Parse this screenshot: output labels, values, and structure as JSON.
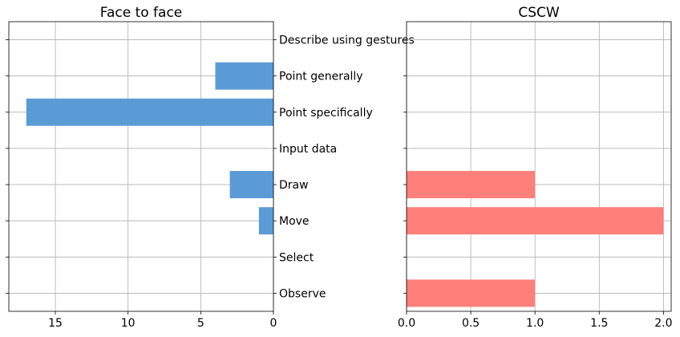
{
  "chart_data": [
    {
      "type": "bar",
      "orientation": "horizontal",
      "title": "Face to face",
      "categories": [
        "Observe",
        "Select",
        "Move",
        "Draw",
        "Input data",
        "Point specifically",
        "Point generally",
        "Describe using gestures"
      ],
      "values": [
        0,
        0,
        1,
        3,
        0,
        17,
        4,
        0
      ],
      "xlim": [
        18.2,
        0
      ],
      "xticks": [
        "15",
        "10",
        "5",
        "0"
      ],
      "x_inverted": true,
      "grid": true,
      "color": "#5b9bd5"
    },
    {
      "type": "bar",
      "orientation": "horizontal",
      "title": "CSCW",
      "categories": [
        "Observe",
        "Select",
        "Move",
        "Draw",
        "Input data",
        "Point specifically",
        "Point generally",
        "Describe using gestures"
      ],
      "values": [
        1,
        0,
        2,
        1,
        0,
        0,
        0,
        0
      ],
      "xlim": [
        0,
        2.06
      ],
      "xticks": [
        "0.0",
        "0.5",
        "1.0",
        "1.5",
        "2.0"
      ],
      "grid": true,
      "color": "#ff7f7b"
    }
  ]
}
